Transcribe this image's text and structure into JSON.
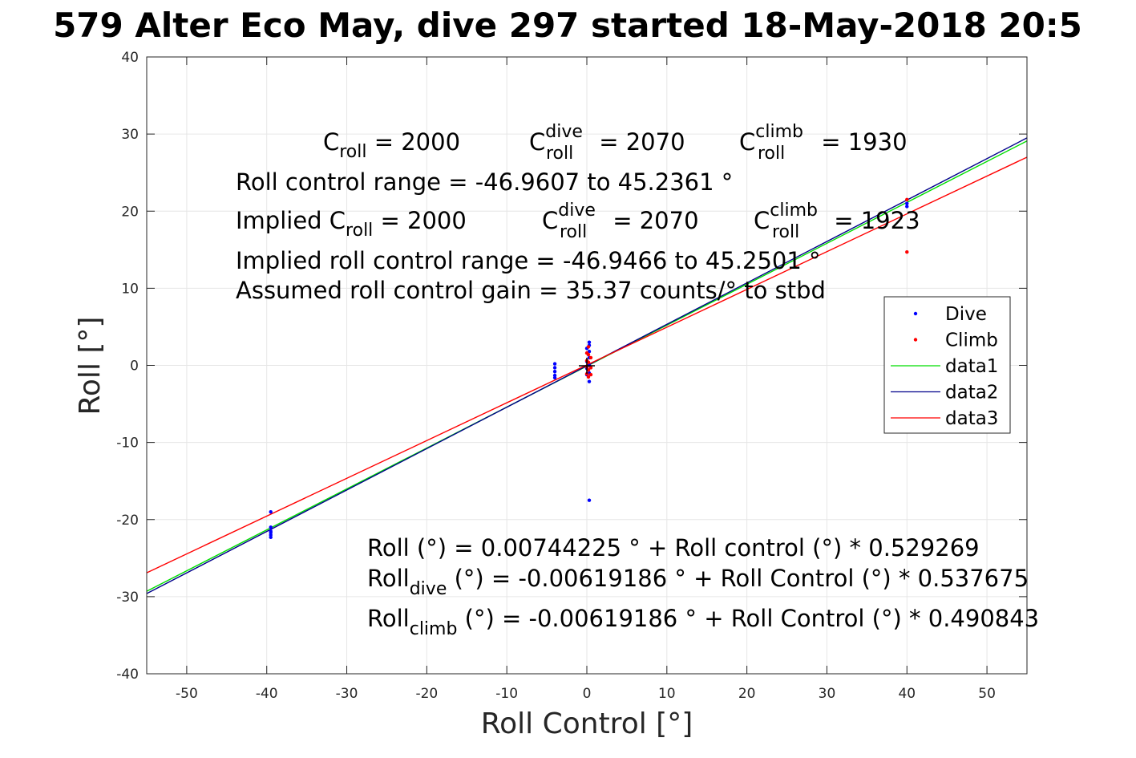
{
  "chart_data": {
    "type": "scatter",
    "title": "579 Alter Eco May, dive 297 started 18-May-2018 20:5",
    "xlabel": "Roll Control [°]",
    "ylabel": "Roll [°]",
    "xlim": [
      -55,
      55
    ],
    "ylim": [
      -40,
      40
    ],
    "xticks": [
      -50,
      -40,
      -30,
      -20,
      -10,
      0,
      10,
      20,
      30,
      40,
      50
    ],
    "yticks": [
      -40,
      -30,
      -20,
      -10,
      0,
      10,
      20,
      30,
      40
    ],
    "xtick_labels": [
      "-50",
      "-40",
      "-30",
      "-20",
      "-10",
      "0",
      "10",
      "20",
      "30",
      "40",
      "50"
    ],
    "ytick_labels": [
      "-40",
      "-30",
      "-20",
      "-10",
      "0",
      "10",
      "20",
      "30",
      "40"
    ],
    "grid": true,
    "legend_placement": "right",
    "legend": [
      "Dive",
      "Climb",
      "data1",
      "data2",
      "data3"
    ],
    "series": [
      {
        "name": "Dive",
        "kind": "points",
        "color": "#0000ff",
        "x": [
          -39.5,
          -39.5,
          -39.5,
          -39.5,
          -39.5,
          -39.5,
          -4,
          -4,
          -4,
          -4,
          -4,
          0,
          0,
          0,
          0,
          0.3,
          0.3,
          0.3,
          0.3,
          0.3,
          0.3,
          0.3,
          0.3,
          40,
          40
        ],
        "y": [
          -19.0,
          -21.0,
          -21.5,
          -22.0,
          -22.3,
          -21.7,
          0.2,
          -0.3,
          -0.8,
          -1.3,
          -1.6,
          2.2,
          0.5,
          -0.4,
          -1.2,
          3.0,
          2.6,
          1.8,
          1.0,
          0.0,
          -1.0,
          -2.1,
          -17.5,
          21.0,
          20.6
        ]
      },
      {
        "name": "Climb",
        "kind": "points",
        "color": "#ff0000",
        "x": [
          0,
          0,
          0,
          0,
          0.2,
          0.2,
          0.2,
          0.2,
          0.2,
          0.5,
          0.5,
          0.5,
          40,
          40
        ],
        "y": [
          1.6,
          0.6,
          -0.2,
          -1.1,
          2.4,
          1.4,
          0.4,
          -0.6,
          -1.5,
          1.0,
          -0.3,
          -1.2,
          21.5,
          14.7
        ]
      },
      {
        "name": "data1",
        "kind": "line",
        "color": "#00dd00",
        "x": [
          -55,
          55
        ],
        "y": [
          -29.3,
          29.1
        ]
      },
      {
        "name": "data2",
        "kind": "line",
        "color": "#00008b",
        "x": [
          -55,
          55
        ],
        "y": [
          -29.6,
          29.5
        ]
      },
      {
        "name": "data3",
        "kind": "line",
        "color": "#ff0000",
        "x": [
          -55,
          55
        ],
        "y": [
          -26.9,
          27.0
        ]
      }
    ]
  },
  "annotations": {
    "calib": {
      "c_roll_main": "C",
      "c_roll_sub": "roll",
      "c_roll_value": " = 2000",
      "c_dive_main": "C",
      "c_dive_sup": "dive",
      "c_dive_sub": "roll",
      "c_dive_value": " = 2070",
      "c_climb_main": "C",
      "c_climb_sup": "climb",
      "c_climb_sub": "roll",
      "c_climb_value": " = 1930"
    },
    "range_text": "Roll control range = -46.9607 to 45.2361 °",
    "implied": {
      "prefix": "Implied C",
      "roll_sub": "roll",
      "roll_value": " = 2000",
      "dive_main": "C",
      "dive_sup": "dive",
      "dive_sub": "roll",
      "dive_value": " = 2070",
      "climb_main": "C",
      "climb_sup": "climb",
      "climb_sub": "roll",
      "climb_value": " = 1923"
    },
    "implied_range_text": "Implied roll control range = -46.9466 to 45.2501 °",
    "gain_text": "Assumed roll control gain = 35.37 counts/° to stbd",
    "fit_all": "Roll (°) = 0.00744225 ° + Roll control (°) * 0.529269",
    "fit_dive": {
      "main": "Roll",
      "sub": "dive",
      "rest": " (°) = -0.00619186 ° + Roll Control (°) * 0.537675"
    },
    "fit_climb": {
      "main": "Roll",
      "sub": "climb",
      "rest": " (°) = -0.00619186 ° + Roll Control (°) * 0.490843"
    }
  }
}
